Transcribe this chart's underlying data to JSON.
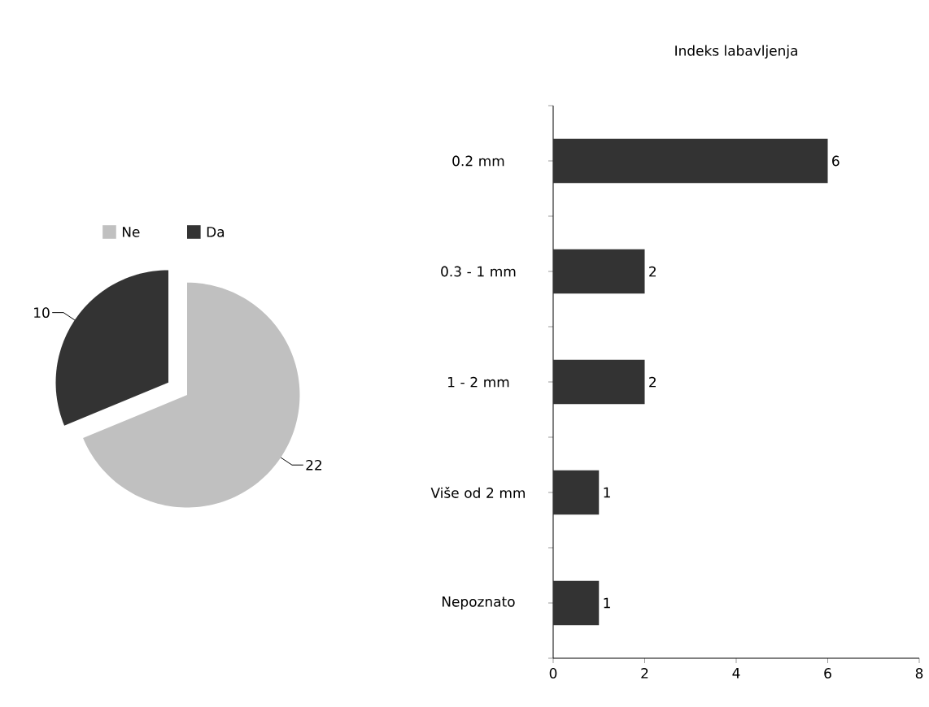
{
  "chart_data": [
    {
      "type": "pie",
      "categories": [
        "Ne",
        "Da"
      ],
      "values": [
        22,
        10
      ],
      "colors": [
        "#c0c0c0",
        "#333333"
      ],
      "data_labels": true,
      "legend": "top"
    },
    {
      "type": "bar",
      "orientation": "horizontal",
      "title": "Indeks labavljenja",
      "categories": [
        "0.2 mm",
        "0.3 - 1 mm",
        "1 - 2 mm",
        "Više od 2 mm",
        "Nepoznato"
      ],
      "values": [
        6,
        2,
        2,
        1,
        1
      ],
      "color": "#333333",
      "xlim": [
        0,
        8
      ],
      "xticks": [
        0,
        2,
        4,
        6,
        8
      ],
      "data_labels": true,
      "legend": false
    }
  ]
}
